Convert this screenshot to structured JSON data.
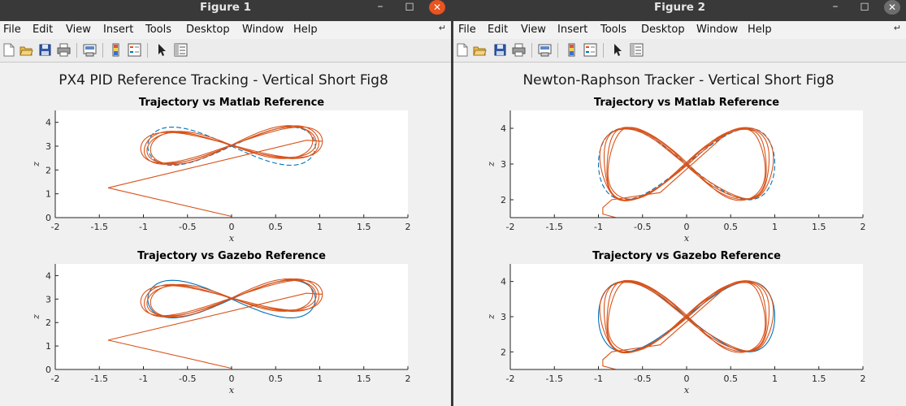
{
  "colors": {
    "reference": "#0072bd",
    "trajectory": "#d95319",
    "titlebar": "#393939",
    "close_active": "#e95420"
  },
  "menu": [
    "File",
    "Edit",
    "View",
    "Insert",
    "Tools",
    "Desktop",
    "Window",
    "Help"
  ],
  "toolbar_icons": [
    "new-figure-icon",
    "open-file-icon",
    "save-icon",
    "print-icon",
    "print-preview-icon",
    "insert-colorbar-icon",
    "insert-legend-icon",
    "select-pointer-icon",
    "property-inspector-icon"
  ],
  "figures": [
    {
      "window_title": "Figure 1",
      "figure_title": "PX4 PID Reference Tracking - Vertical Short Fig8",
      "subplots": [
        {
          "title": "Trajectory vs Matlab Reference",
          "xlabel": "x",
          "ylabel": "z",
          "xticks": [
            "-2",
            "-1.5",
            "-1",
            "-0.5",
            "0",
            "0.5",
            "1",
            "1.5",
            "2"
          ],
          "yticks": [
            "0",
            "1",
            "2",
            "3",
            "4"
          ]
        },
        {
          "title": "Trajectory vs Gazebo Reference",
          "xlabel": "x",
          "ylabel": "z",
          "xticks": [
            "-2",
            "-1.5",
            "-1",
            "-0.5",
            "0",
            "0.5",
            "1",
            "1.5",
            "2"
          ],
          "yticks": [
            "0",
            "1",
            "2",
            "3",
            "4"
          ]
        }
      ]
    },
    {
      "window_title": "Figure 2",
      "figure_title": "Newton-Raphson Tracker - Vertical Short Fig8",
      "subplots": [
        {
          "title": "Trajectory vs Matlab Reference",
          "xlabel": "x",
          "ylabel": "z",
          "xticks": [
            "-2",
            "-1.5",
            "-1",
            "-0.5",
            "0",
            "0.5",
            "1",
            "1.5",
            "2"
          ],
          "yticks": [
            "2",
            "3",
            "4"
          ]
        },
        {
          "title": "Trajectory vs Gazebo Reference",
          "xlabel": "x",
          "ylabel": "z",
          "xticks": [
            "-2",
            "-1.5",
            "-1",
            "-0.5",
            "0",
            "0.5",
            "1",
            "1.5",
            "2"
          ],
          "yticks": [
            "2",
            "3",
            "4"
          ]
        }
      ]
    }
  ],
  "chart_data": [
    {
      "type": "line",
      "figure": "Figure 1",
      "title": "Trajectory vs Matlab Reference",
      "xlabel": "x",
      "ylabel": "z",
      "xlim": [
        -2,
        2
      ],
      "ylim": [
        0,
        4.5
      ],
      "series": [
        {
          "style": "dashed",
          "color": "#0072bd",
          "shape": "figure-eight",
          "center": [
            0,
            3
          ],
          "x_amplitude": 0.95,
          "z_amplitude": 1
        },
        {
          "style": "solid",
          "color": "#d95319",
          "shape": "figure-eight with takeoff",
          "start": [
            0,
            0.05
          ],
          "takeoff_path": [
            [
              0,
              0.05
            ],
            [
              -1.4,
              1.25
            ],
            [
              0.85,
              3.25
            ]
          ],
          "center": [
            0,
            3.05
          ],
          "x_amplitude": 1.05,
          "z_amplitude": 0.8,
          "tilt": 0.15,
          "loops": 4
        }
      ]
    },
    {
      "type": "line",
      "figure": "Figure 1",
      "title": "Trajectory vs Gazebo Reference",
      "xlabel": "x",
      "ylabel": "z",
      "xlim": [
        -2,
        2
      ],
      "ylim": [
        0,
        4.5
      ],
      "series": [
        {
          "style": "solid",
          "color": "#0072bd",
          "shape": "figure-eight",
          "center": [
            0,
            3
          ],
          "x_amplitude": 0.95,
          "z_amplitude": 1
        },
        {
          "style": "solid",
          "color": "#d95319",
          "shape": "figure-eight with takeoff",
          "start": [
            0,
            0.05
          ],
          "takeoff_path": [
            [
              0,
              0.05
            ],
            [
              -1.4,
              1.25
            ],
            [
              0.85,
              3.25
            ]
          ],
          "center": [
            0,
            3.05
          ],
          "x_amplitude": 1.05,
          "z_amplitude": 0.8,
          "tilt": 0.15,
          "loops": 4
        }
      ]
    },
    {
      "type": "line",
      "figure": "Figure 2",
      "title": "Trajectory vs Matlab Reference",
      "xlabel": "x",
      "ylabel": "z",
      "xlim": [
        -2,
        2
      ],
      "ylim": [
        1.5,
        4.5
      ],
      "series": [
        {
          "style": "dashed",
          "color": "#0072bd",
          "shape": "figure-eight",
          "center": [
            0,
            3
          ],
          "x_amplitude": 1,
          "z_amplitude": 1
        },
        {
          "style": "solid",
          "color": "#d95319",
          "shape": "figure-eight with takeoff",
          "start": [
            -0.8,
            1.5
          ],
          "center": [
            0,
            3
          ],
          "x_amplitude": 0.98,
          "z_amplitude": 1,
          "loops": 4
        }
      ]
    },
    {
      "type": "line",
      "figure": "Figure 2",
      "title": "Trajectory vs Gazebo Reference",
      "xlabel": "x",
      "ylabel": "z",
      "xlim": [
        -2,
        2
      ],
      "ylim": [
        1.5,
        4.5
      ],
      "series": [
        {
          "style": "solid",
          "color": "#0072bd",
          "shape": "figure-eight",
          "center": [
            0,
            3
          ],
          "x_amplitude": 1,
          "z_amplitude": 1
        },
        {
          "style": "solid",
          "color": "#d95319",
          "shape": "figure-eight with takeoff",
          "start": [
            -0.8,
            1.5
          ],
          "center": [
            0,
            3
          ],
          "x_amplitude": 0.98,
          "z_amplitude": 1,
          "loops": 4
        }
      ]
    }
  ]
}
